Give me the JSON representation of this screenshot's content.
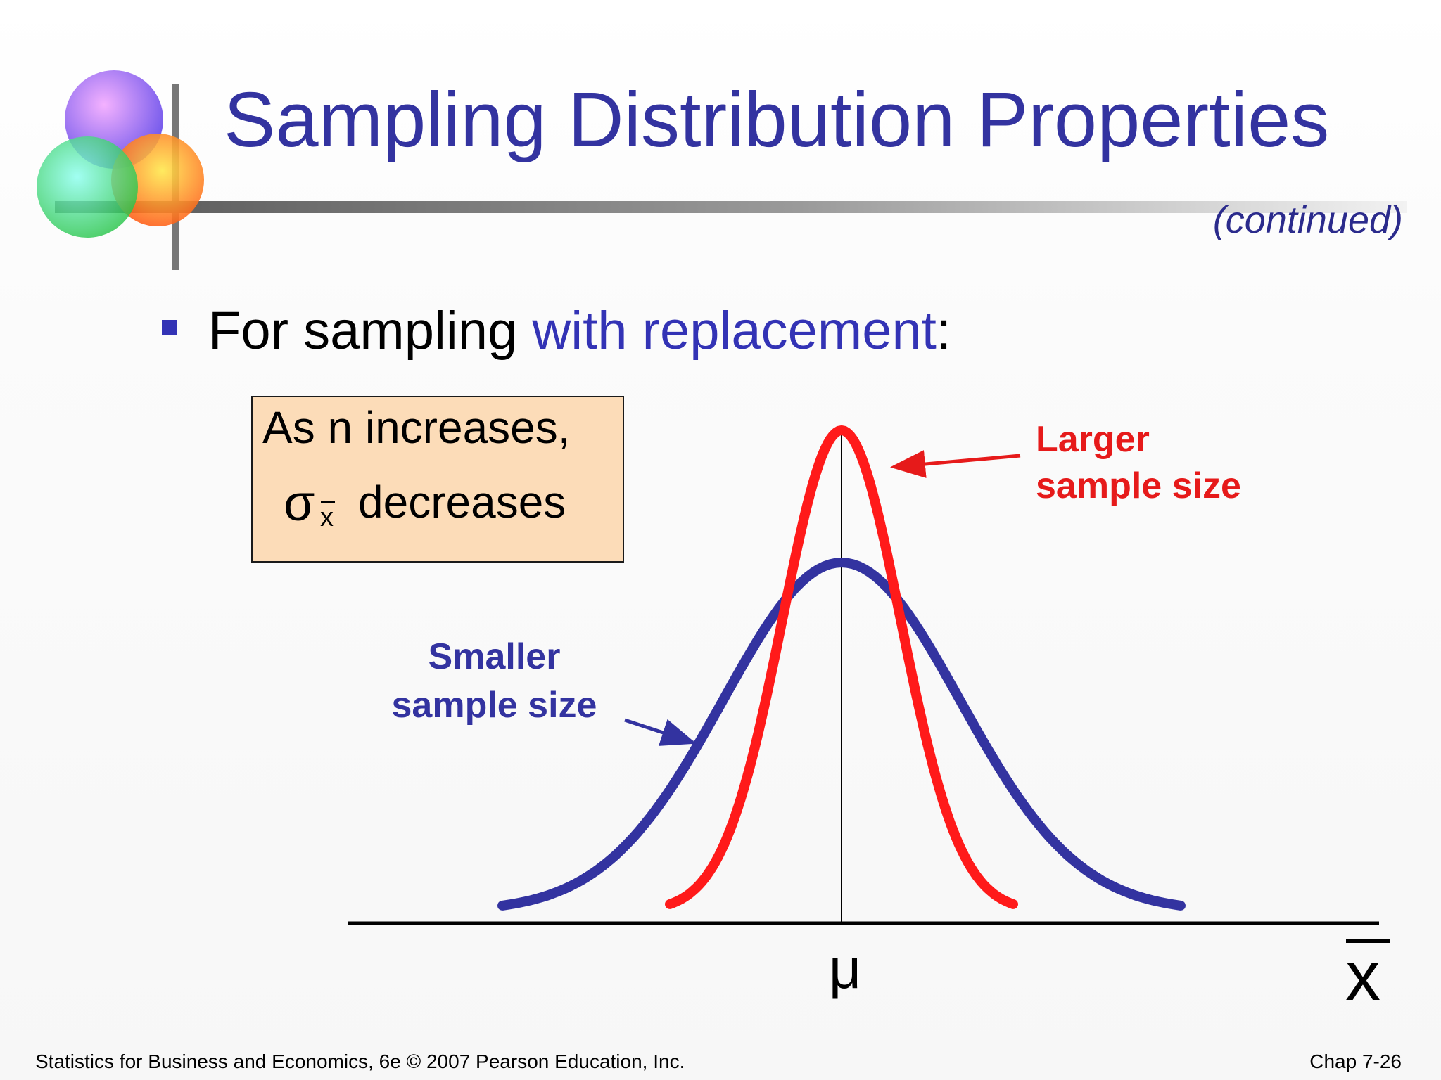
{
  "slide": {
    "title": "Sampling Distribution Properties",
    "subtitle_note": "(continued)",
    "bullet": {
      "text_before": "For sampling ",
      "highlight": "with replacement",
      "text_after": ":"
    },
    "callout": {
      "line1": "As n  increases,",
      "symbol": "σ",
      "subscript": "x",
      "line2": "decreases"
    },
    "footer": {
      "left": "Statistics for Business and Economics, 6e © 2007 Pearson Education, Inc.",
      "right": "Chap 7-26"
    }
  },
  "chart_data": {
    "type": "line",
    "series": [
      {
        "name": "Smaller sample size",
        "color": "#3333a0"
      },
      {
        "name": "Larger sample size",
        "color": "#ff1a1a"
      }
    ],
    "labels": {
      "larger": [
        "Larger",
        "sample size"
      ],
      "smaller": [
        "Smaller",
        "sample size"
      ]
    },
    "xlabel": "x",
    "center_label": "μ"
  },
  "colors": {
    "title": "#3333a0",
    "accent_blue": "#3333b5",
    "accent_red": "#e61a1a",
    "callout_fill": "#fcdcb8"
  }
}
